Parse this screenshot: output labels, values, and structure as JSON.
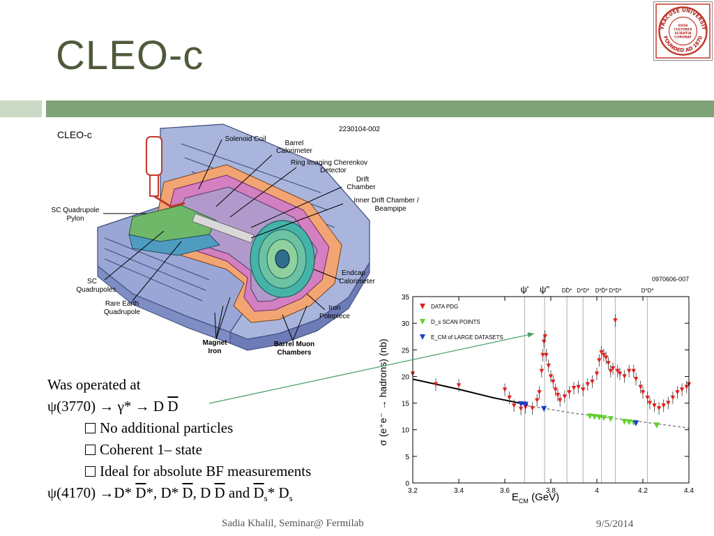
{
  "slide": {
    "title": "CLEO-c",
    "footer_center": "Sadia Khalil, Seminar@ Fermilab",
    "footer_date": "9/5/2014",
    "logo_text": [
      "SYRACUSE UNIVERSITY",
      "FOUNDED AD 1870",
      "SUOS CULTORES SCIENTIA CORONAT"
    ]
  },
  "detector": {
    "heading": "CLEO-c",
    "code": "2230104-002",
    "labels": {
      "solenoid": "Solenoid Coil",
      "barrel_cal_1": "Barrel",
      "barrel_cal_2": "Calorimeter",
      "rich_1": "Ring Imaging Cherenkov",
      "rich_2": "Detector",
      "drift_1": "Drift",
      "drift_2": "Chamber",
      "inner_1": "Inner Drift Chamber /",
      "inner_2": "Beampipe",
      "pylon_1": "SC Quadrupole",
      "pylon_2": "Pylon",
      "scq_1": "SC",
      "scq_2": "Quadrupoles",
      "rare_1": "Rare Earth",
      "rare_2": "Quadrupole",
      "endcap_1": "Endcap",
      "endcap_2": "Calorimeter",
      "iron_1": "Iron",
      "iron_2": "Polepiece",
      "magnet_1": "Magnet",
      "magnet_2": "Iron",
      "muon_1": "Barrel Muon",
      "muon_2": "Chambers"
    }
  },
  "text": {
    "l1": "Was operated at",
    "l2a": "ψ(3770) → γ* → D ",
    "l2b": "D",
    "b1": "No additional particles",
    "b2": "Coherent 1– state",
    "b3": "Ideal for absolute BF measurements",
    "l6a": "ψ(4170) →D* ",
    "l6b": "D",
    "l6c": "*, D* ",
    "l6d": "D",
    "l6e": ", D ",
    "l6f": "D",
    "l6g": " and ",
    "l6h": "D",
    "l6i": "s",
    "l6j": "* D",
    "l6k": "s"
  },
  "chart_data": {
    "type": "scatter",
    "code": "0970606-007",
    "xlabel": "E",
    "xlabel_sub": "CM",
    "xlabel_unit": " (GeV)",
    "ylabel": "σ (e⁺e⁻ → hadrons) (nb)",
    "xlim": [
      3.2,
      4.4
    ],
    "ylim": [
      0,
      35
    ],
    "xticks": [
      3.2,
      3.4,
      3.6,
      3.8,
      4.0,
      4.2,
      4.4
    ],
    "xtick_labels": [
      "3.2",
      "3.4",
      "3.6",
      "3.8",
      "4",
      "4.2",
      "4.4"
    ],
    "yticks": [
      0,
      5,
      10,
      15,
      20,
      25,
      30,
      35
    ],
    "ytick_labels": [
      "0",
      "5",
      "10",
      "15",
      "20",
      "25",
      "30",
      "35"
    ],
    "thresholds": [
      {
        "x": 3.686,
        "label": "ψ'"
      },
      {
        "x": 3.773,
        "label": "ψ''"
      },
      {
        "x": 3.87,
        "label": "DD̄*"
      },
      {
        "x": 3.94,
        "label": "D*D*"
      },
      {
        "x": 4.02,
        "label": "D*D̄*"
      },
      {
        "x": 4.08,
        "label": "D*D*"
      },
      {
        "x": 4.22,
        "label": "D*D*"
      }
    ],
    "legend": [
      "DATA PDG",
      "D_s SCAN POINTS",
      "E_CM of LARGE DATASETS"
    ],
    "legend_placement": "top-left",
    "colors": {
      "pdg": "#e0201e",
      "scan": "#5fd12a",
      "large": "#1e3ccc",
      "fit": "#000000"
    },
    "fit_line": [
      [
        3.2,
        19.5
      ],
      [
        3.4,
        17.6
      ],
      [
        3.55,
        16.0
      ],
      [
        3.7,
        14.7
      ]
    ],
    "fit_dashed": [
      [
        3.7,
        14.5
      ],
      [
        3.9,
        13.1
      ],
      [
        4.1,
        12.0
      ],
      [
        4.3,
        10.9
      ],
      [
        4.4,
        10.3
      ]
    ],
    "series": [
      {
        "name": "DATA PDG",
        "points": [
          [
            3.2,
            20.5
          ],
          [
            3.3,
            18.5
          ],
          [
            3.4,
            18.3
          ],
          [
            3.6,
            17.5
          ],
          [
            3.62,
            16
          ],
          [
            3.64,
            14.5
          ],
          [
            3.67,
            13.9
          ],
          [
            3.69,
            14.2
          ],
          [
            3.72,
            14
          ],
          [
            3.74,
            15.5
          ],
          [
            3.75,
            17
          ],
          [
            3.76,
            21
          ],
          [
            3.765,
            24
          ],
          [
            3.77,
            26.5
          ],
          [
            3.775,
            27.5
          ],
          [
            3.78,
            24
          ],
          [
            3.79,
            22
          ],
          [
            3.8,
            20
          ],
          [
            3.81,
            19
          ],
          [
            3.82,
            17.5
          ],
          [
            3.83,
            16.5
          ],
          [
            3.84,
            15.5
          ],
          [
            3.86,
            16.2
          ],
          [
            3.88,
            17
          ],
          [
            3.9,
            17.8
          ],
          [
            3.92,
            18
          ],
          [
            3.94,
            17.5
          ],
          [
            3.96,
            18.5
          ],
          [
            3.98,
            19
          ],
          [
            4.0,
            20.5
          ],
          [
            4.01,
            23
          ],
          [
            4.02,
            24.5
          ],
          [
            4.03,
            24
          ],
          [
            4.04,
            23.5
          ],
          [
            4.05,
            22.5
          ],
          [
            4.06,
            21
          ],
          [
            4.07,
            21.5
          ],
          [
            4.08,
            30.5
          ],
          [
            4.09,
            21
          ],
          [
            4.1,
            20.5
          ],
          [
            4.12,
            20
          ],
          [
            4.14,
            21
          ],
          [
            4.16,
            21
          ],
          [
            4.17,
            19.5
          ],
          [
            4.19,
            18
          ],
          [
            4.2,
            17
          ],
          [
            4.22,
            16
          ],
          [
            4.23,
            15
          ],
          [
            4.25,
            14.5
          ],
          [
            4.27,
            14
          ],
          [
            4.29,
            14.5
          ],
          [
            4.31,
            15
          ],
          [
            4.33,
            16
          ],
          [
            4.35,
            17
          ],
          [
            4.37,
            17.5
          ],
          [
            4.39,
            18
          ],
          [
            4.4,
            18.5
          ]
        ]
      },
      {
        "name": "D_s SCAN POINTS",
        "points": [
          [
            3.97,
            12.5
          ],
          [
            3.99,
            12.4
          ],
          [
            4.01,
            12.3
          ],
          [
            4.03,
            12.2
          ],
          [
            4.06,
            12.0
          ],
          [
            4.12,
            11.5
          ],
          [
            4.14,
            11.4
          ],
          [
            4.16,
            11.3
          ],
          [
            4.26,
            10.8
          ]
        ]
      },
      {
        "name": "E_CM of LARGE DATASETS",
        "points": [
          [
            3.67,
            14.8
          ],
          [
            3.69,
            14.7
          ],
          [
            3.77,
            13.9
          ],
          [
            4.17,
            11.2
          ]
        ]
      }
    ]
  }
}
